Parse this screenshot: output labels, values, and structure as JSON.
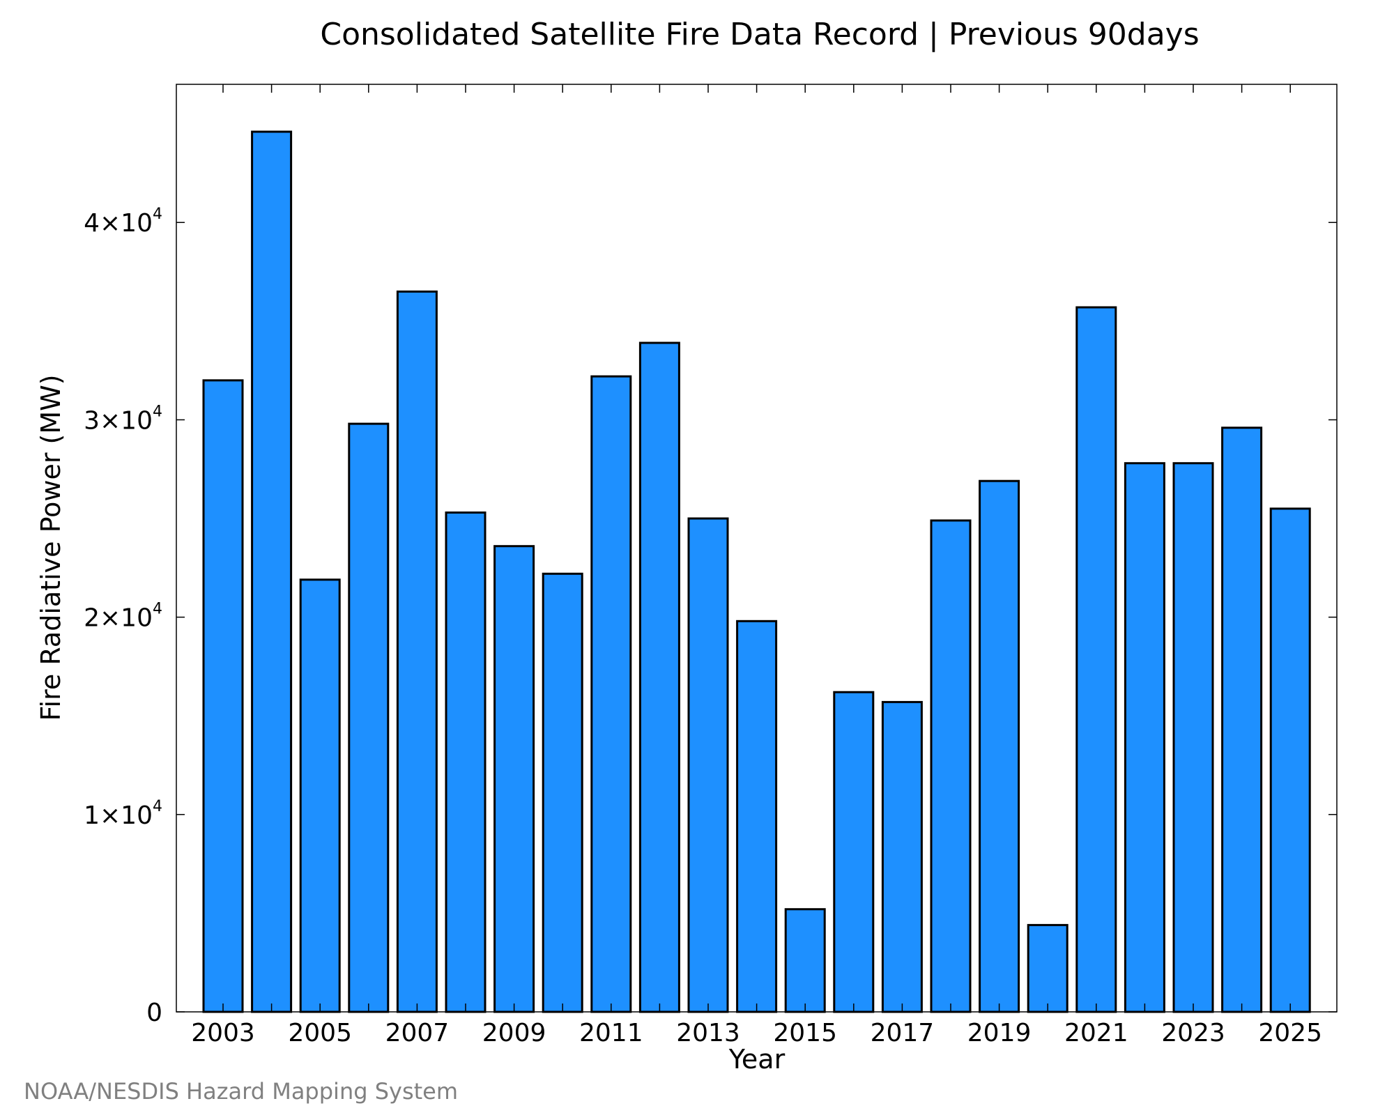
{
  "chart_data": {
    "type": "bar",
    "title": "Consolidated Satellite Fire Data Record | Previous 90days",
    "xlabel": "Year",
    "ylabel": "Fire Radiative Power (MW)",
    "categories": [
      "2003",
      "2004",
      "2005",
      "2006",
      "2007",
      "2008",
      "2009",
      "2010",
      "2011",
      "2012",
      "2013",
      "2014",
      "2015",
      "2016",
      "2017",
      "2018",
      "2019",
      "2020",
      "2021",
      "2022",
      "2023",
      "2024",
      "2025"
    ],
    "values": [
      32000,
      44600,
      21900,
      29800,
      36500,
      25300,
      23600,
      22200,
      32200,
      33900,
      25000,
      19800,
      5200,
      16200,
      15700,
      24900,
      26900,
      4400,
      35700,
      27800,
      27800,
      29600,
      25500
    ],
    "x_tick_labels": [
      "2003",
      "2005",
      "2007",
      "2009",
      "2011",
      "2013",
      "2015",
      "2017",
      "2019",
      "2021",
      "2023",
      "2025"
    ],
    "ylim": [
      0,
      47000
    ],
    "y_ticks": [
      {
        "value": 0,
        "mantissa": "0",
        "exponent": ""
      },
      {
        "value": 10000,
        "mantissa": "1×10",
        "exponent": "4"
      },
      {
        "value": 20000,
        "mantissa": "2×10",
        "exponent": "4"
      },
      {
        "value": 30000,
        "mantissa": "3×10",
        "exponent": "4"
      },
      {
        "value": 40000,
        "mantissa": "4×10",
        "exponent": "4"
      }
    ],
    "bar_color": "#1e90ff",
    "edge_color": "#000000",
    "grid": false,
    "legend": "none"
  },
  "credit": "NOAA/NESDIS Hazard Mapping System"
}
